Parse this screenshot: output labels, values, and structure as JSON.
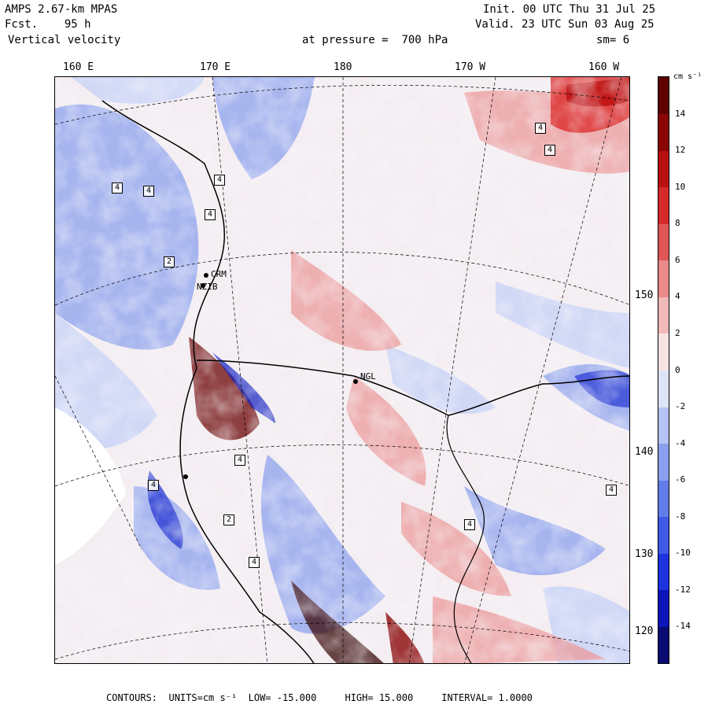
{
  "header": {
    "model": "AMPS 2.67-km MPAS",
    "fcst_label": "Fcst.",
    "fcst_value": "95 h",
    "field": "Vertical velocity",
    "init": "Init. 00 UTC Thu 31 Jul 25",
    "valid": "Valid. 23 UTC Sun 03 Aug 25",
    "pressure_label": "at pressure =",
    "pressure_value": "700 hPa",
    "smoothing": "sm= 6"
  },
  "longitude_labels": [
    "160 E",
    "170 E",
    "180",
    "170 W",
    "160 W"
  ],
  "latitude_labels": [
    "150 W",
    "140 W",
    "130 W",
    "120 W"
  ],
  "stations": [
    "CRM",
    "NZIB",
    "NGL"
  ],
  "contour_box_labels": [
    "4",
    "4",
    "4",
    "4",
    "4",
    "4",
    "2",
    "4",
    "4",
    "4",
    "2",
    "4",
    "4"
  ],
  "colorbar": {
    "unit": "cm s⁻¹",
    "ticks": [
      "14",
      "12",
      "10",
      "8",
      "6",
      "4",
      "2",
      "0",
      "-2",
      "-4",
      "-6",
      "-8",
      "-10",
      "-12",
      "-14"
    ],
    "colors": [
      "#0a0a73",
      "#0b16b8",
      "#1d33e0",
      "#3e5ae6",
      "#627de9",
      "#8aa0ee",
      "#b4c4f4",
      "#dde4f8",
      "#f6e4e4",
      "#f1b9b9",
      "#ea8a8a",
      "#e05656",
      "#d42a2a",
      "#b80f0f",
      "#8a0606",
      "#5e0000"
    ]
  },
  "footer": {
    "contours_label": "CONTOURS:",
    "units_label": "UNITS=cm s⁻¹",
    "low": "LOW= -15.000",
    "high": "HIGH= 15.000",
    "interval": "INTERVAL= 1.0000"
  }
}
